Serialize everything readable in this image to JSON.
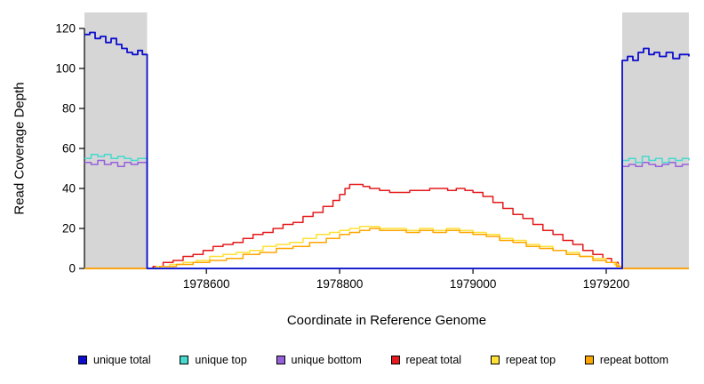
{
  "chart_data": {
    "type": "line",
    "title": "",
    "xlabel": "Coordinate in Reference Genome",
    "ylabel": "Read Coverage Depth",
    "xlim": [
      1978417,
      1979324
    ],
    "ylim": [
      0,
      128
    ],
    "x_ticks": [
      1978600,
      1978800,
      1979000,
      1979200
    ],
    "y_ticks": [
      0,
      20,
      40,
      60,
      80,
      100,
      120
    ],
    "grid": false,
    "legend_position": "bottom",
    "shade_color": "#d6d6d6",
    "shaded_regions": [
      [
        1978417,
        1978511
      ],
      [
        1979224,
        1979324
      ]
    ],
    "draw_order": [
      3,
      4,
      5,
      2,
      1,
      0
    ],
    "series": [
      {
        "name": "unique total",
        "color": "#0d0dce",
        "points": [
          [
            1978417,
            117
          ],
          [
            1978425,
            118
          ],
          [
            1978433,
            115
          ],
          [
            1978441,
            116
          ],
          [
            1978449,
            113
          ],
          [
            1978457,
            115
          ],
          [
            1978465,
            112
          ],
          [
            1978473,
            110
          ],
          [
            1978481,
            108
          ],
          [
            1978489,
            107
          ],
          [
            1978497,
            109
          ],
          [
            1978504,
            107
          ],
          [
            1978511,
            107
          ],
          [
            1978511,
            0
          ],
          [
            1979224,
            0
          ],
          [
            1979224,
            104
          ],
          [
            1979232,
            106
          ],
          [
            1979240,
            104
          ],
          [
            1979248,
            108
          ],
          [
            1979256,
            110
          ],
          [
            1979264,
            107
          ],
          [
            1979272,
            108
          ],
          [
            1979280,
            106
          ],
          [
            1979290,
            108
          ],
          [
            1979300,
            105
          ],
          [
            1979310,
            107
          ],
          [
            1979324,
            106
          ]
        ]
      },
      {
        "name": "unique top",
        "color": "#45d9ce",
        "points": [
          [
            1978417,
            55
          ],
          [
            1978427,
            57
          ],
          [
            1978437,
            56
          ],
          [
            1978447,
            57
          ],
          [
            1978457,
            55
          ],
          [
            1978467,
            56
          ],
          [
            1978477,
            55
          ],
          [
            1978487,
            54
          ],
          [
            1978497,
            55
          ],
          [
            1978511,
            55
          ],
          [
            1978511,
            0
          ],
          [
            1979224,
            0
          ],
          [
            1979224,
            54
          ],
          [
            1979234,
            55
          ],
          [
            1979244,
            53
          ],
          [
            1979254,
            56
          ],
          [
            1979264,
            54
          ],
          [
            1979274,
            55
          ],
          [
            1979284,
            53
          ],
          [
            1979294,
            55
          ],
          [
            1979304,
            54
          ],
          [
            1979314,
            55
          ],
          [
            1979324,
            54
          ]
        ]
      },
      {
        "name": "unique bottom",
        "color": "#9760db",
        "points": [
          [
            1978417,
            53
          ],
          [
            1978427,
            52
          ],
          [
            1978437,
            54
          ],
          [
            1978447,
            52
          ],
          [
            1978457,
            53
          ],
          [
            1978467,
            51
          ],
          [
            1978477,
            53
          ],
          [
            1978487,
            52
          ],
          [
            1978497,
            53
          ],
          [
            1978511,
            52
          ],
          [
            1978511,
            0
          ],
          [
            1979224,
            0
          ],
          [
            1979224,
            51
          ],
          [
            1979234,
            52
          ],
          [
            1979244,
            51
          ],
          [
            1979254,
            53
          ],
          [
            1979264,
            52
          ],
          [
            1979274,
            51
          ],
          [
            1979284,
            52
          ],
          [
            1979294,
            53
          ],
          [
            1979304,
            51
          ],
          [
            1979314,
            52
          ],
          [
            1979324,
            52
          ]
        ]
      },
      {
        "name": "repeat total",
        "color": "#e41a1c",
        "points": [
          [
            1978417,
            0
          ],
          [
            1978511,
            0
          ],
          [
            1978520,
            1
          ],
          [
            1978535,
            3
          ],
          [
            1978550,
            4
          ],
          [
            1978565,
            6
          ],
          [
            1978580,
            7
          ],
          [
            1978595,
            9
          ],
          [
            1978610,
            11
          ],
          [
            1978625,
            12
          ],
          [
            1978640,
            13
          ],
          [
            1978655,
            15
          ],
          [
            1978670,
            17
          ],
          [
            1978685,
            18
          ],
          [
            1978700,
            20
          ],
          [
            1978715,
            22
          ],
          [
            1978730,
            23
          ],
          [
            1978745,
            26
          ],
          [
            1978760,
            28
          ],
          [
            1978775,
            31
          ],
          [
            1978790,
            34
          ],
          [
            1978800,
            37
          ],
          [
            1978808,
            40
          ],
          [
            1978815,
            42
          ],
          [
            1978825,
            42
          ],
          [
            1978835,
            41
          ],
          [
            1978845,
            40
          ],
          [
            1978860,
            39
          ],
          [
            1978875,
            38
          ],
          [
            1978890,
            38
          ],
          [
            1978905,
            39
          ],
          [
            1978920,
            39
          ],
          [
            1978935,
            40
          ],
          [
            1978950,
            40
          ],
          [
            1978962,
            39
          ],
          [
            1978975,
            40
          ],
          [
            1978988,
            39
          ],
          [
            1979000,
            38
          ],
          [
            1979015,
            36
          ],
          [
            1979030,
            33
          ],
          [
            1979045,
            30
          ],
          [
            1979060,
            27
          ],
          [
            1979075,
            25
          ],
          [
            1979090,
            22
          ],
          [
            1979105,
            19
          ],
          [
            1979120,
            17
          ],
          [
            1979135,
            14
          ],
          [
            1979150,
            12
          ],
          [
            1979165,
            9
          ],
          [
            1979180,
            7
          ],
          [
            1979195,
            5
          ],
          [
            1979208,
            3
          ],
          [
            1979218,
            1
          ],
          [
            1979224,
            0
          ],
          [
            1979324,
            0
          ]
        ]
      },
      {
        "name": "repeat top",
        "color": "#ffe135",
        "points": [
          [
            1978417,
            0
          ],
          [
            1978511,
            0
          ],
          [
            1978525,
            1
          ],
          [
            1978545,
            2
          ],
          [
            1978565,
            3
          ],
          [
            1978585,
            4
          ],
          [
            1978605,
            6
          ],
          [
            1978625,
            7
          ],
          [
            1978645,
            8
          ],
          [
            1978665,
            9
          ],
          [
            1978685,
            11
          ],
          [
            1978705,
            12
          ],
          [
            1978725,
            13
          ],
          [
            1978745,
            15
          ],
          [
            1978765,
            17
          ],
          [
            1978785,
            18
          ],
          [
            1978800,
            19
          ],
          [
            1978815,
            20
          ],
          [
            1978830,
            21
          ],
          [
            1978845,
            21
          ],
          [
            1978860,
            20
          ],
          [
            1978880,
            20
          ],
          [
            1978900,
            19
          ],
          [
            1978920,
            20
          ],
          [
            1978940,
            19
          ],
          [
            1978960,
            20
          ],
          [
            1978980,
            19
          ],
          [
            1979000,
            18
          ],
          [
            1979020,
            17
          ],
          [
            1979040,
            15
          ],
          [
            1979060,
            14
          ],
          [
            1979080,
            12
          ],
          [
            1979100,
            11
          ],
          [
            1979120,
            9
          ],
          [
            1979140,
            8
          ],
          [
            1979160,
            6
          ],
          [
            1979180,
            5
          ],
          [
            1979200,
            3
          ],
          [
            1979212,
            2
          ],
          [
            1979220,
            1
          ],
          [
            1979224,
            0
          ],
          [
            1979324,
            0
          ]
        ]
      },
      {
        "name": "repeat bottom",
        "color": "#ffa500",
        "points": [
          [
            1978417,
            0
          ],
          [
            1978511,
            0
          ],
          [
            1978530,
            1
          ],
          [
            1978555,
            2
          ],
          [
            1978580,
            3
          ],
          [
            1978605,
            4
          ],
          [
            1978630,
            5
          ],
          [
            1978655,
            7
          ],
          [
            1978680,
            8
          ],
          [
            1978705,
            10
          ],
          [
            1978730,
            11
          ],
          [
            1978755,
            13
          ],
          [
            1978780,
            15
          ],
          [
            1978800,
            17
          ],
          [
            1978815,
            18
          ],
          [
            1978830,
            19
          ],
          [
            1978845,
            20
          ],
          [
            1978860,
            19
          ],
          [
            1978880,
            19
          ],
          [
            1978900,
            18
          ],
          [
            1978920,
            19
          ],
          [
            1978940,
            18
          ],
          [
            1978960,
            19
          ],
          [
            1978980,
            18
          ],
          [
            1979000,
            17
          ],
          [
            1979020,
            16
          ],
          [
            1979040,
            14
          ],
          [
            1979060,
            13
          ],
          [
            1979080,
            11
          ],
          [
            1979100,
            10
          ],
          [
            1979120,
            9
          ],
          [
            1979140,
            7
          ],
          [
            1979160,
            6
          ],
          [
            1979180,
            4
          ],
          [
            1979200,
            3
          ],
          [
            1979215,
            1
          ],
          [
            1979224,
            0
          ],
          [
            1979324,
            0
          ]
        ]
      }
    ]
  }
}
